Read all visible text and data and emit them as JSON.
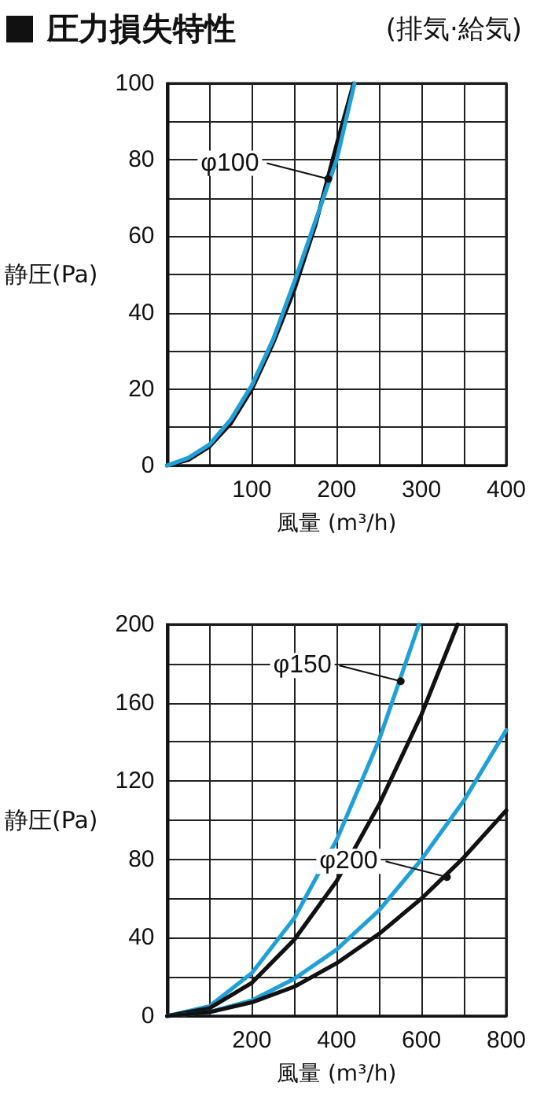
{
  "chart_data": [
    {
      "type": "line",
      "title": "圧力損失特性",
      "subtitle": "(排気·給気)",
      "xlabel": "風量 (m³/h)",
      "ylabel": "静圧(Pa)",
      "xlim": [
        0,
        400
      ],
      "xticks": [
        {
          "value": 0,
          "label": null
        },
        {
          "value": 50,
          "label": null
        },
        100,
        {
          "value": 150,
          "label": null
        },
        200,
        {
          "value": 250,
          "label": null
        },
        300,
        {
          "value": 350,
          "label": null
        },
        400
      ],
      "ylim": [
        0,
        100
      ],
      "yticks": [
        0,
        {
          "value": 10,
          "label": null
        },
        20,
        {
          "value": 30,
          "label": null
        },
        40,
        {
          "value": 50,
          "label": null
        },
        60,
        {
          "value": 70,
          "label": null
        },
        80,
        {
          "value": 90,
          "label": null
        },
        100
      ],
      "grid": true,
      "line_style": "solid",
      "series": [
        {
          "color": "#111111",
          "x": [
            0,
            25,
            50,
            75,
            100,
            125,
            150,
            175,
            200,
            220
          ],
          "values": [
            0,
            1.5,
            5,
            11,
            20,
            32,
            46,
            63,
            84,
            100
          ]
        },
        {
          "color": "#1fa0d8",
          "x": [
            0,
            25,
            50,
            75,
            100,
            125,
            150,
            175,
            200,
            221
          ],
          "values": [
            0,
            2,
            5.5,
            12,
            21,
            33,
            48,
            64,
            80,
            100
          ]
        }
      ],
      "annotations": [
        {
          "text": "φ100",
          "x": 190,
          "y": 75
        }
      ]
    },
    {
      "type": "line",
      "xlabel": "風量 (m³/h)",
      "ylabel": "静圧(Pa)",
      "xlim": [
        0,
        800
      ],
      "xticks": [
        {
          "value": 0,
          "label": null
        },
        {
          "value": 100,
          "label": null
        },
        200,
        {
          "value": 300,
          "label": null
        },
        400,
        {
          "value": 500,
          "label": null
        },
        600,
        {
          "value": 700,
          "label": null
        },
        800
      ],
      "ylim": [
        0,
        200
      ],
      "yticks": [
        0,
        {
          "value": 20,
          "label": null
        },
        40,
        {
          "value": 60,
          "label": null
        },
        80,
        {
          "value": 100,
          "label": null
        },
        120,
        {
          "value": 140,
          "label": null
        },
        160,
        {
          "value": 180,
          "label": null
        },
        200
      ],
      "grid": true,
      "line_style": "solid",
      "series": [
        {
          "color": "#1fa0d8",
          "x": [
            0,
            100,
            200,
            300,
            400,
            500,
            594
          ],
          "values": [
            0,
            5,
            22,
            50,
            90,
            141,
            200
          ]
        },
        {
          "color": "#111111",
          "x": [
            0,
            100,
            200,
            300,
            400,
            500,
            600,
            685
          ],
          "values": [
            0,
            4,
            17,
            39,
            69,
            108,
            154,
            200
          ]
        },
        {
          "color": "#1fa0d8",
          "x": [
            0,
            100,
            200,
            300,
            400,
            500,
            600,
            700,
            800
          ],
          "values": [
            0,
            2,
            8,
            19,
            34,
            54,
            80,
            110,
            146
          ]
        },
        {
          "color": "#111111",
          "x": [
            0,
            100,
            200,
            300,
            400,
            500,
            600,
            700,
            800
          ],
          "values": [
            0,
            2,
            7,
            15,
            27,
            42,
            60,
            81,
            105
          ]
        }
      ],
      "annotations": [
        {
          "text": "φ150",
          "x": 551,
          "y": 171
        },
        {
          "text": "φ200",
          "x": 660,
          "y": 71
        }
      ]
    }
  ]
}
